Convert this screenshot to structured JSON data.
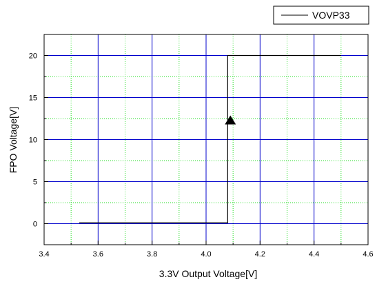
{
  "chart_data": {
    "type": "line",
    "title": "",
    "xlabel": "3.3V Output Voltage[V]",
    "ylabel": "FPO Voltage[V]",
    "xlim": [
      3.4,
      4.6
    ],
    "ylim": [
      -2.5,
      22.5
    ],
    "x_ticks": [
      3.4,
      3.6,
      3.8,
      4.0,
      4.2,
      4.4,
      4.6
    ],
    "x_tick_labels": [
      "3.4",
      "3.6",
      "3.8",
      "4.0",
      "4.2",
      "4.4",
      "4.6"
    ],
    "y_ticks": [
      0,
      5,
      10,
      15,
      20
    ],
    "y_tick_labels": [
      "0",
      "5",
      "10",
      "15",
      "20"
    ],
    "grid": "on",
    "legend_position": "top-right",
    "series": [
      {
        "name": "VOVP33",
        "x": [
          3.53,
          4.08,
          4.08,
          4.09,
          4.5
        ],
        "y": [
          0.1,
          0.1,
          20.0,
          20.0,
          20.0
        ]
      }
    ],
    "annotations": [
      {
        "type": "arrow-up",
        "x": 4.09,
        "y": 12.3
      }
    ],
    "colors": {
      "major_grid": "#0000cc",
      "minor_grid": "#22dd22",
      "series_line": "#000000"
    }
  }
}
